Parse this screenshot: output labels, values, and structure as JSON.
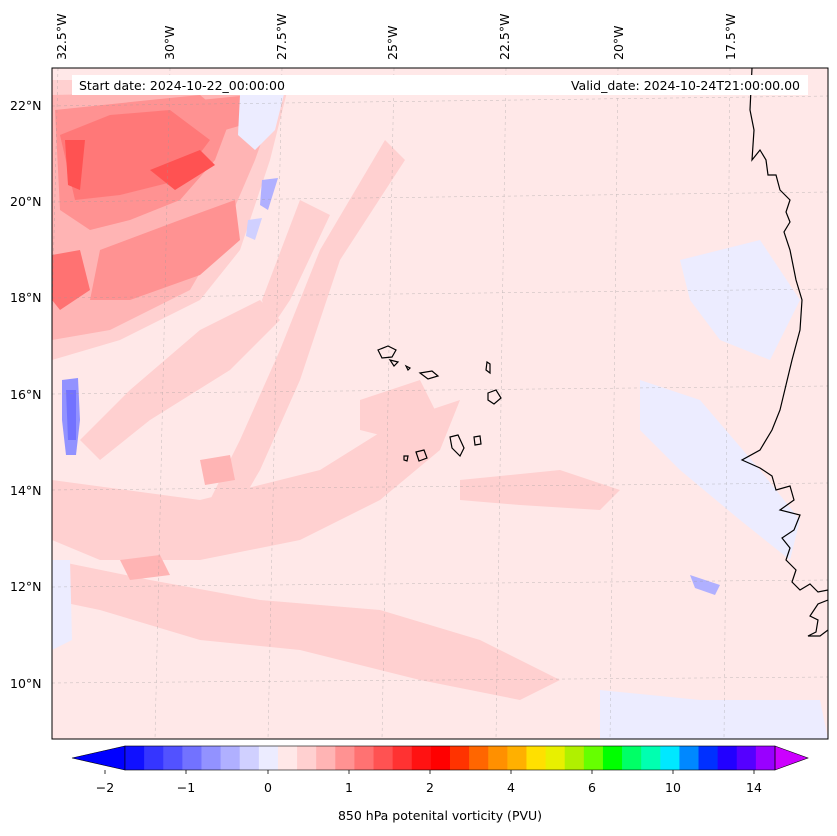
{
  "map": {
    "start_date": "Start date: 2024-10-22_00:00:00",
    "valid_date": "Valid_date: 2024-10-24T21:00:00.00",
    "lon_labels": [
      "32.5°W",
      "30°W",
      "27.5°W",
      "25°W",
      "22.5°W",
      "20°W",
      "17.5°W"
    ],
    "lat_labels": [
      "22°N",
      "20°N",
      "18°N",
      "16°N",
      "14°N",
      "12°N",
      "10°N"
    ],
    "background_color": "#ffe8e8",
    "coastline_color": "#000000"
  },
  "colorbar": {
    "label": "850 hPa potenital vorticity (PVU)",
    "tick_labels": [
      "−2",
      "−1",
      "0",
      "1",
      "2",
      "4",
      "6",
      "10",
      "14"
    ],
    "under_color": "#0000ff",
    "over_color": "#cc00ff",
    "colors": [
      "#1010ff",
      "#3535ff",
      "#5252ff",
      "#7272ff",
      "#9292ff",
      "#b0b0ff",
      "#d0d0ff",
      "#ececff",
      "#ffe8e8",
      "#ffd0d0",
      "#ffb4b4",
      "#ff9292",
      "#ff7272",
      "#ff5252",
      "#ff3232",
      "#ff1212",
      "#ff0000",
      "#ff3300",
      "#ff6600",
      "#ff9000",
      "#ffb000",
      "#ffe000",
      "#e8f000",
      "#b0f000",
      "#66ff00",
      "#00ff00",
      "#00ff66",
      "#00ffb0",
      "#00e8ff",
      "#0088ff",
      "#0030ff",
      "#2200ff",
      "#5500ff",
      "#9900ff"
    ]
  }
}
